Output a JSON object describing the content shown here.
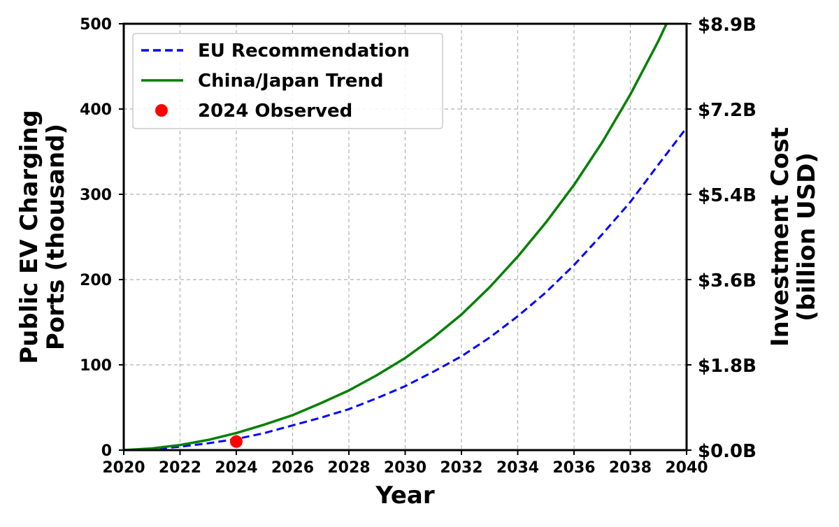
{
  "chart_data": {
    "type": "line",
    "title": "",
    "xlabel": "Year",
    "ylabel": "Public EV Charging\nPorts (thousand)",
    "y2label": "Investment Cost\n(billion USD)",
    "xlim": [
      2020,
      2040
    ],
    "ylim": [
      0,
      500
    ],
    "x_ticks": [
      "2020",
      "2022",
      "2024",
      "2026",
      "2028",
      "2030",
      "2032",
      "2034",
      "2036",
      "2038",
      "2040"
    ],
    "y_ticks": [
      "0",
      "100",
      "200",
      "300",
      "400",
      "500"
    ],
    "y2_ticks": [
      "$0.0B",
      "$1.8B",
      "$3.6B",
      "$5.4B",
      "$7.2B",
      "$8.9B"
    ],
    "grid": true,
    "legend_position": "top-left",
    "x": [
      2020,
      2021,
      2022,
      2023,
      2024,
      2025,
      2026,
      2027,
      2028,
      2029,
      2030,
      2031,
      2032,
      2033,
      2034,
      2035,
      2036,
      2037,
      2038,
      2039,
      2040
    ],
    "series": [
      {
        "name": "EU Recommendation",
        "style": "dashed",
        "color": "#0000ff",
        "values": [
          0,
          1,
          4,
          8,
          13,
          20,
          29,
          38,
          48,
          61,
          75,
          92,
          110,
          132,
          157,
          185,
          217,
          253,
          291,
          335,
          378
        ]
      },
      {
        "name": "China/Japan Trend",
        "style": "solid",
        "color": "#008000",
        "values": [
          0,
          2,
          6,
          12,
          20,
          30,
          41,
          55,
          70,
          88,
          108,
          132,
          159,
          191,
          227,
          267,
          311,
          361,
          417,
          480,
          550
        ]
      },
      {
        "name": "2024 Observed",
        "style": "marker",
        "color": "#ff0000",
        "points": [
          {
            "x": 2024,
            "y": 10
          }
        ]
      }
    ]
  }
}
